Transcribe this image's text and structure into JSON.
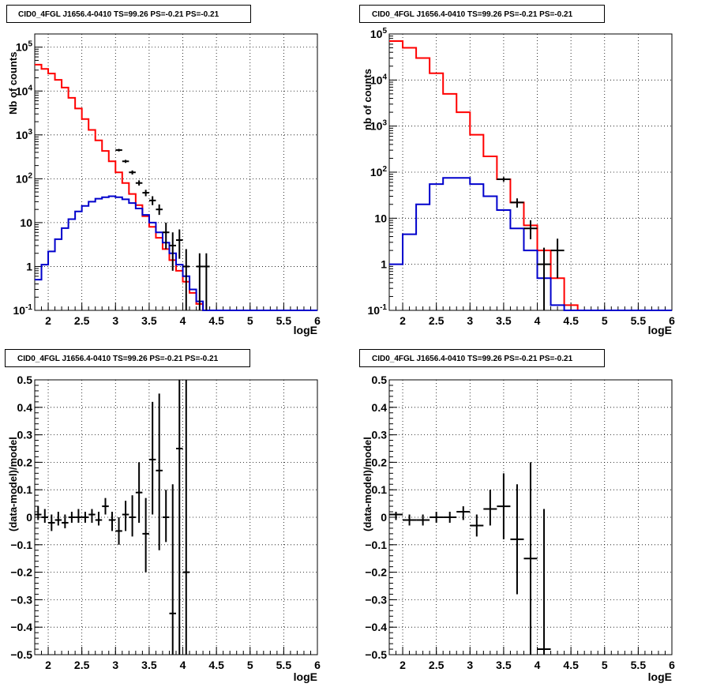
{
  "colors": {
    "data": "#000000",
    "total": "#ff0000",
    "source": "#0000cc",
    "grid": "#000000"
  },
  "charts": [
    {
      "title": "CID0_4FGL J1656.4-0410 TS=99.26 PS=-0.21 PS=-0.21",
      "xlabel": "logE",
      "ylabel": "Nb of counts"
    },
    {
      "title": "CID0_4FGL J1656.4-0410 TS=99.26 PS=-0.21 PS=-0.21",
      "xlabel": "logE",
      "ylabel": "nb of counts"
    },
    {
      "title": "CID0_4FGL J1656.4-0410 TS=99.26 PS=-0.21 PS=-0.21",
      "xlabel": "logE",
      "ylabel": "(data-model)/model"
    },
    {
      "title": "CID0_4FGL J1656.4-0410 TS=99.26 PS=-0.21 PS=-0.21",
      "xlabel": "logE",
      "ylabel": "(data-model)/model"
    }
  ],
  "chart_data": [
    {
      "type": "line",
      "title": "CID0_4FGL J1656.4-0410 TS=99.26 PS=-0.21 PS=-0.21",
      "xlabel": "logE",
      "ylabel": "Nb of counts",
      "xlim": [
        1.8,
        6.0
      ],
      "ylim": [
        0.1,
        200000
      ],
      "yscale": "log",
      "grid": true,
      "x_ticks": [
        "2",
        "2.5",
        "3",
        "3.5",
        "4",
        "4.5",
        "5",
        "5.5",
        "6"
      ],
      "y_ticks": [
        "10^-1",
        "1",
        "10",
        "10^2",
        "10^3",
        "10^4",
        "10^5"
      ],
      "bin_edges": [
        1.8,
        1.9,
        2.0,
        2.1,
        2.2,
        2.3,
        2.4,
        2.5,
        2.6,
        2.7,
        2.8,
        2.9,
        3.0,
        3.1,
        3.2,
        3.3,
        3.4,
        3.5,
        3.6,
        3.7,
        3.8,
        3.9,
        4.0,
        4.1,
        4.2,
        4.3,
        4.4,
        4.5,
        4.6,
        4.7,
        4.8,
        4.9,
        5.0,
        5.1,
        5.2,
        5.3,
        5.4,
        5.5,
        5.6,
        5.7,
        5.8,
        5.9,
        6.0
      ],
      "series": [
        {
          "kind": "step",
          "color": "#ff0000",
          "values": [
            40000,
            32000,
            25000,
            18000,
            12000,
            7000,
            4000,
            2300,
            1300,
            750,
            430,
            250,
            140,
            80,
            45,
            25,
            14,
            8,
            4.5,
            2.5,
            1.4,
            0.8,
            0.45,
            0.25,
            0.14,
            0.1,
            0.1,
            0.1,
            0.1,
            0.1,
            0.1,
            0.1,
            0.1,
            0.1,
            0.1,
            0.1,
            0.1,
            0.1,
            0.1,
            0.1,
            0.1,
            0.1
          ]
        },
        {
          "kind": "step",
          "color": "#0000cc",
          "values": [
            0.5,
            1.1,
            2.2,
            4.2,
            7.5,
            12,
            18,
            24,
            30,
            35,
            38,
            40,
            38,
            34,
            28,
            21,
            15,
            10,
            6,
            3.5,
            2,
            1.1,
            0.6,
            0.3,
            0.16,
            0.1,
            0.1,
            0.1,
            0.1,
            0.1,
            0.1,
            0.1,
            0.1,
            0.1,
            0.1,
            0.1,
            0.1,
            0.1,
            0.1,
            0.1,
            0.1,
            0.1
          ]
        },
        {
          "kind": "errorbars",
          "color": "#000000",
          "points": [
            {
              "x": 3.05,
              "y": 450,
              "lo": 420,
              "hi": 480,
              "xerr": 0.05
            },
            {
              "x": 3.15,
              "y": 250,
              "lo": 230,
              "hi": 270,
              "xerr": 0.05
            },
            {
              "x": 3.25,
              "y": 140,
              "lo": 125,
              "hi": 155,
              "xerr": 0.05
            },
            {
              "x": 3.35,
              "y": 80,
              "lo": 70,
              "hi": 92,
              "xerr": 0.05
            },
            {
              "x": 3.45,
              "y": 48,
              "lo": 40,
              "hi": 56,
              "xerr": 0.05
            },
            {
              "x": 3.55,
              "y": 32,
              "lo": 25,
              "hi": 40,
              "xerr": 0.05
            },
            {
              "x": 3.65,
              "y": 20,
              "lo": 15,
              "hi": 26,
              "xerr": 0.05
            },
            {
              "x": 3.75,
              "y": 6,
              "lo": 2.5,
              "hi": 10,
              "xerr": 0.05
            },
            {
              "x": 3.85,
              "y": 3,
              "lo": 0.8,
              "hi": 6,
              "xerr": 0.05
            },
            {
              "x": 3.95,
              "y": 4,
              "lo": 1.5,
              "hi": 7,
              "xerr": 0.05
            },
            {
              "x": 4.05,
              "y": 1,
              "lo": 0.1,
              "hi": 2.5,
              "xerr": 0.05
            },
            {
              "x": 4.25,
              "y": 1,
              "lo": 0.1,
              "hi": 2,
              "xerr": 0.05
            },
            {
              "x": 4.35,
              "y": 1,
              "lo": 0.1,
              "hi": 2,
              "xerr": 0.05
            }
          ]
        }
      ]
    },
    {
      "type": "line",
      "title": "CID0_4FGL J1656.4-0410 TS=99.26 PS=-0.21 PS=-0.21",
      "xlabel": "logE",
      "ylabel": "nb of counts",
      "xlim": [
        1.8,
        6.0
      ],
      "ylim": [
        0.1,
        100000
      ],
      "yscale": "log",
      "grid": true,
      "x_ticks": [
        "2",
        "2.5",
        "3",
        "3.5",
        "4",
        "4.5",
        "5",
        "5.5",
        "6"
      ],
      "y_ticks": [
        "10^-1",
        "1",
        "10",
        "10^2",
        "10^3",
        "10^4",
        "10^5"
      ],
      "bin_edges": [
        1.8,
        2.0,
        2.2,
        2.4,
        2.6,
        2.8,
        3.0,
        3.2,
        3.4,
        3.6,
        3.8,
        4.0,
        4.2,
        4.4,
        4.6,
        4.8,
        5.0,
        5.2,
        5.4,
        5.6,
        5.8,
        6.0
      ],
      "series": [
        {
          "kind": "step",
          "color": "#ff0000",
          "values": [
            70000,
            50000,
            30000,
            14000,
            5000,
            2000,
            650,
            220,
            70,
            22,
            7,
            2,
            0.5,
            0.13,
            0.1,
            0.1,
            0.1,
            0.1,
            0.1,
            0.1,
            0.1
          ]
        },
        {
          "kind": "step",
          "color": "#0000cc",
          "values": [
            1,
            4.5,
            20,
            55,
            75,
            75,
            55,
            30,
            15,
            6,
            2,
            0.5,
            0.13,
            0.1,
            0.1,
            0.1,
            0.1,
            0.1,
            0.1,
            0.1,
            0.1
          ]
        },
        {
          "kind": "errorbars",
          "color": "#000000",
          "points": [
            {
              "x": 3.5,
              "y": 70,
              "lo": 62,
              "hi": 78,
              "xerr": 0.1
            },
            {
              "x": 3.7,
              "y": 22,
              "lo": 17,
              "hi": 27,
              "xerr": 0.1
            },
            {
              "x": 3.9,
              "y": 6,
              "lo": 3.5,
              "hi": 9,
              "xerr": 0.1
            },
            {
              "x": 4.1,
              "y": 1,
              "lo": 0.1,
              "hi": 2.3,
              "xerr": 0.1
            },
            {
              "x": 4.3,
              "y": 2,
              "lo": 0.5,
              "hi": 3.6,
              "xerr": 0.1
            }
          ]
        }
      ]
    },
    {
      "type": "scatter",
      "title": "CID0_4FGL J1656.4-0410 TS=99.26 PS=-0.21 PS=-0.21",
      "xlabel": "logE",
      "ylabel": "(data-model)/model",
      "xlim": [
        1.8,
        6.0
      ],
      "ylim": [
        -0.5,
        0.5
      ],
      "grid": true,
      "x_ticks": [
        "2",
        "2.5",
        "3",
        "3.5",
        "4",
        "4.5",
        "5",
        "5.5",
        "6"
      ],
      "y_ticks": [
        "-0.5",
        "-0.4",
        "-0.3",
        "-0.2",
        "-0.1",
        "0",
        "0.1",
        "0.2",
        "0.3",
        "0.4",
        "0.5"
      ],
      "series": [
        {
          "kind": "errorbars",
          "color": "#000000",
          "points": [
            {
              "x": 1.85,
              "y": 0.01,
              "lo": -0.01,
              "hi": 0.04,
              "xerr": 0.05
            },
            {
              "x": 1.95,
              "y": 0.0,
              "lo": -0.02,
              "hi": 0.03,
              "xerr": 0.05
            },
            {
              "x": 2.05,
              "y": -0.02,
              "lo": -0.05,
              "hi": 0.01,
              "xerr": 0.05
            },
            {
              "x": 2.15,
              "y": -0.01,
              "lo": -0.03,
              "hi": 0.02,
              "xerr": 0.05
            },
            {
              "x": 2.25,
              "y": -0.02,
              "lo": -0.04,
              "hi": 0.01,
              "xerr": 0.05
            },
            {
              "x": 2.35,
              "y": 0.0,
              "lo": -0.02,
              "hi": 0.02,
              "xerr": 0.05
            },
            {
              "x": 2.45,
              "y": 0.0,
              "lo": -0.02,
              "hi": 0.03,
              "xerr": 0.05
            },
            {
              "x": 2.55,
              "y": 0.0,
              "lo": -0.02,
              "hi": 0.02,
              "xerr": 0.05
            },
            {
              "x": 2.65,
              "y": 0.01,
              "lo": -0.02,
              "hi": 0.03,
              "xerr": 0.05
            },
            {
              "x": 2.75,
              "y": -0.01,
              "lo": -0.03,
              "hi": 0.02,
              "xerr": 0.05
            },
            {
              "x": 2.85,
              "y": 0.04,
              "lo": 0.01,
              "hi": 0.07,
              "xerr": 0.05
            },
            {
              "x": 2.95,
              "y": -0.01,
              "lo": -0.05,
              "hi": 0.02,
              "xerr": 0.05
            },
            {
              "x": 3.05,
              "y": -0.05,
              "lo": -0.1,
              "hi": 0.0,
              "xerr": 0.05
            },
            {
              "x": 3.15,
              "y": 0.01,
              "lo": -0.05,
              "hi": 0.06,
              "xerr": 0.05
            },
            {
              "x": 3.25,
              "y": 0.0,
              "lo": -0.07,
              "hi": 0.08,
              "xerr": 0.05
            },
            {
              "x": 3.35,
              "y": 0.09,
              "lo": -0.02,
              "hi": 0.2,
              "xerr": 0.05
            },
            {
              "x": 3.45,
              "y": -0.06,
              "lo": -0.2,
              "hi": 0.07,
              "xerr": 0.05
            },
            {
              "x": 3.55,
              "y": 0.21,
              "lo": 0.01,
              "hi": 0.42,
              "xerr": 0.05
            },
            {
              "x": 3.65,
              "y": 0.17,
              "lo": -0.12,
              "hi": 0.45,
              "xerr": 0.05
            },
            {
              "x": 3.75,
              "y": 0.0,
              "lo": -0.09,
              "hi": 0.1,
              "xerr": 0.05
            },
            {
              "x": 3.85,
              "y": -0.35,
              "lo": -0.5,
              "hi": 0.12,
              "xerr": 0.05
            },
            {
              "x": 3.95,
              "y": 0.25,
              "lo": -0.5,
              "hi": 0.5,
              "xerr": 0.05
            },
            {
              "x": 4.05,
              "y": -0.2,
              "lo": -0.5,
              "hi": 0.5,
              "xerr": 0.05
            }
          ]
        }
      ]
    },
    {
      "type": "scatter",
      "title": "CID0_4FGL J1656.4-0410 TS=99.26 PS=-0.21 PS=-0.21",
      "xlabel": "logE",
      "ylabel": "(data-model)/model",
      "xlim": [
        1.8,
        6.0
      ],
      "ylim": [
        -0.5,
        0.5
      ],
      "grid": true,
      "x_ticks": [
        "2",
        "2.5",
        "3",
        "3.5",
        "4",
        "4.5",
        "5",
        "5.5",
        "6"
      ],
      "y_ticks": [
        "-0.5",
        "-0.4",
        "-0.3",
        "-0.2",
        "-0.1",
        "0",
        "0.1",
        "0.2",
        "0.3",
        "0.4",
        "0.5"
      ],
      "series": [
        {
          "kind": "errorbars",
          "color": "#000000",
          "points": [
            {
              "x": 1.9,
              "y": 0.01,
              "lo": -0.01,
              "hi": 0.02,
              "xerr": 0.1
            },
            {
              "x": 2.1,
              "y": -0.01,
              "lo": -0.03,
              "hi": 0.01,
              "xerr": 0.1
            },
            {
              "x": 2.3,
              "y": -0.01,
              "lo": -0.03,
              "hi": 0.01,
              "xerr": 0.1
            },
            {
              "x": 2.5,
              "y": 0.0,
              "lo": -0.02,
              "hi": 0.02,
              "xerr": 0.1
            },
            {
              "x": 2.7,
              "y": 0.0,
              "lo": -0.02,
              "hi": 0.02,
              "xerr": 0.1
            },
            {
              "x": 2.9,
              "y": 0.02,
              "lo": -0.01,
              "hi": 0.04,
              "xerr": 0.1
            },
            {
              "x": 3.1,
              "y": -0.03,
              "lo": -0.07,
              "hi": 0.01,
              "xerr": 0.1
            },
            {
              "x": 3.3,
              "y": 0.03,
              "lo": -0.03,
              "hi": 0.1,
              "xerr": 0.1
            },
            {
              "x": 3.5,
              "y": 0.04,
              "lo": -0.08,
              "hi": 0.16,
              "xerr": 0.1
            },
            {
              "x": 3.7,
              "y": -0.08,
              "lo": -0.28,
              "hi": 0.12,
              "xerr": 0.1
            },
            {
              "x": 3.9,
              "y": -0.15,
              "lo": -0.5,
              "hi": 0.2,
              "xerr": 0.1
            },
            {
              "x": 4.1,
              "y": -0.48,
              "lo": -0.5,
              "hi": 0.03,
              "xerr": 0.1
            }
          ]
        }
      ]
    }
  ]
}
